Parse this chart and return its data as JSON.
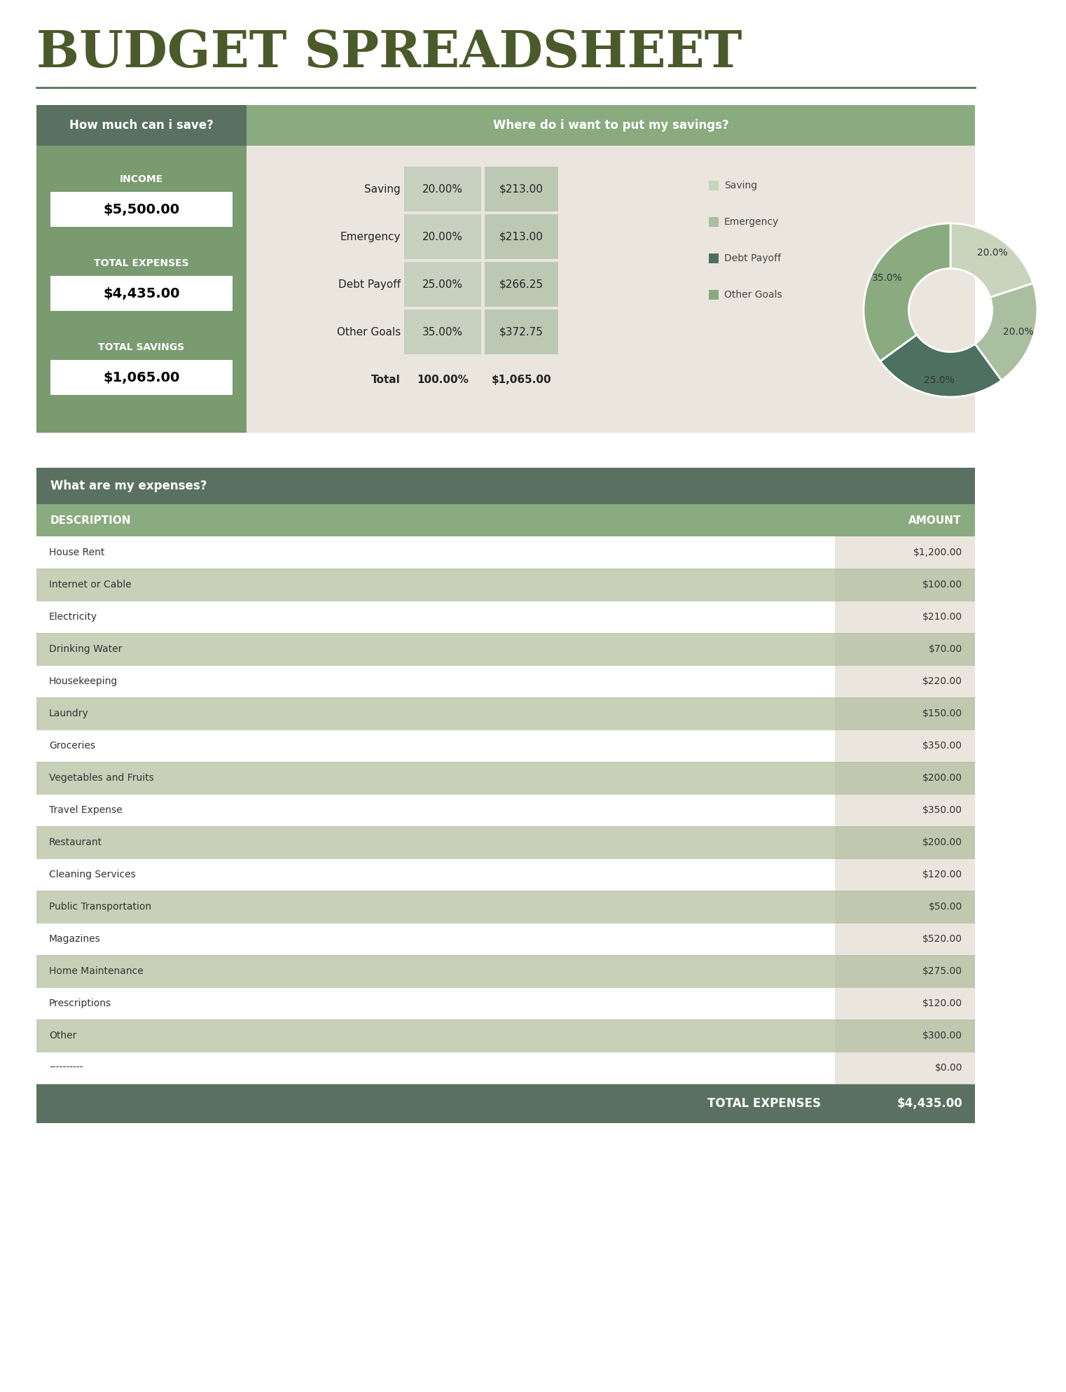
{
  "title": "BUDGET SPREADSHEET",
  "title_color": "#4a5a2a",
  "title_fontsize": 52,
  "bg_color": "#ffffff",
  "header1": "How much can i save?",
  "header2": "Where do i want to put my savings?",
  "header_bg_dark": "#5a7060",
  "header_bg_light": "#8aaa80",
  "left_panel_bg": "#7a9a70",
  "right_panel_bg": "#eae6de",
  "income_label": "INCOME",
  "income_value": "$5,500.00",
  "expenses_label": "TOTAL EXPENSES",
  "expenses_value": "$4,435.00",
  "savings_label": "TOTAL SAVINGS",
  "savings_value": "$1,065.00",
  "savings_rows": [
    {
      "label": "Saving",
      "pct": "20.00%",
      "amt": "$213.00",
      "shaded": true
    },
    {
      "label": "Emergency",
      "pct": "20.00%",
      "amt": "$213.00",
      "shaded": false
    },
    {
      "label": "Debt Payoff",
      "pct": "25.00%",
      "amt": "$266.25",
      "shaded": true
    },
    {
      "label": "Other Goals",
      "pct": "35.00%",
      "amt": "$372.75",
      "shaded": false
    },
    {
      "label": "Total",
      "pct": "100.00%",
      "amt": "$1,065.00",
      "shaded": false
    }
  ],
  "pie_values": [
    20,
    20,
    25,
    35
  ],
  "pie_colors": [
    "#c8d4bc",
    "#aabfa0",
    "#4d7060",
    "#8aaa80"
  ],
  "pie_labels": [
    "20.0%",
    "20.0%",
    "25.0%",
    "35.0%"
  ],
  "legend_labels": [
    "Saving",
    "Emergency",
    "Debt Payoff",
    "Other Goals"
  ],
  "expenses_section_header": "What are my expenses?",
  "expenses_header_bg": "#5a7060",
  "col_desc": "DESCRIPTION",
  "col_amt": "AMOUNT",
  "col_header_bg": "#8aaa80",
  "col_header_color": "#ffffff",
  "expense_items": [
    {
      "desc": "House Rent",
      "amt": "$1,200.00",
      "shaded": false
    },
    {
      "desc": "Internet or Cable",
      "amt": "$100.00",
      "shaded": true
    },
    {
      "desc": "Electricity",
      "amt": "$210.00",
      "shaded": false
    },
    {
      "desc": "Drinking Water",
      "amt": "$70.00",
      "shaded": true
    },
    {
      "desc": "Housekeeping",
      "amt": "$220.00",
      "shaded": false
    },
    {
      "desc": "Laundry",
      "amt": "$150.00",
      "shaded": true
    },
    {
      "desc": "Groceries",
      "amt": "$350.00",
      "shaded": false
    },
    {
      "desc": "Vegetables and Fruits",
      "amt": "$200.00",
      "shaded": true
    },
    {
      "desc": "Travel Expense",
      "amt": "$350.00",
      "shaded": false
    },
    {
      "desc": "Restaurant",
      "amt": "$200.00",
      "shaded": true
    },
    {
      "desc": "Cleaning Services",
      "amt": "$120.00",
      "shaded": false
    },
    {
      "desc": "Public Transportation",
      "amt": "$50.00",
      "shaded": true
    },
    {
      "desc": "Magazines",
      "amt": "$520.00",
      "shaded": false
    },
    {
      "desc": "Home Maintenance",
      "amt": "$275.00",
      "shaded": true
    },
    {
      "desc": "Prescriptions",
      "amt": "$120.00",
      "shaded": false
    },
    {
      "desc": "Other",
      "amt": "$300.00",
      "shaded": true
    },
    {
      "desc": "----------",
      "amt": "$0.00",
      "shaded": false
    }
  ],
  "total_expenses_label": "TOTAL EXPENSES",
  "total_expenses_value": "$4,435.00",
  "total_expenses_bg": "#5a7060",
  "row_shaded_color": "#c8d0b8",
  "row_plain_color": "#ffffff",
  "amount_col_shaded": "#c0c8b0",
  "amount_col_plain": "#eae6de"
}
